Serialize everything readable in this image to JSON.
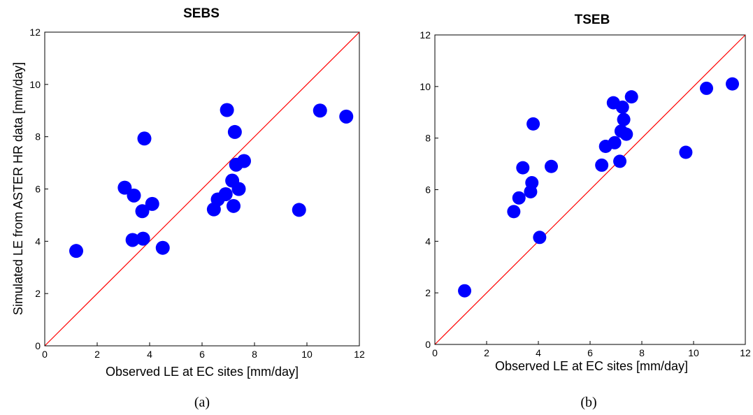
{
  "chart_data": [
    {
      "type": "scatter",
      "title": "SEBS",
      "xlabel": "Observed LE at EC sites [mm/day]",
      "ylabel": "Simulated LE from ASTER HR data [mm/day]",
      "xlim": [
        0,
        12
      ],
      "ylim": [
        0,
        12
      ],
      "xticks": [
        "0",
        "2",
        "4",
        "6",
        "8",
        "10",
        "12"
      ],
      "yticks": [
        "0",
        "2",
        "4",
        "6",
        "8",
        "10",
        "12"
      ],
      "grid": false,
      "point_color": "#0000ff",
      "line_color": "#ff0000",
      "reference_line": "1:1",
      "caption": "(a)",
      "points": [
        {
          "x": 1.2,
          "y": 3.63
        },
        {
          "x": 3.05,
          "y": 6.05
        },
        {
          "x": 3.35,
          "y": 4.05
        },
        {
          "x": 3.4,
          "y": 5.75
        },
        {
          "x": 3.72,
          "y": 5.15
        },
        {
          "x": 3.75,
          "y": 4.1
        },
        {
          "x": 3.8,
          "y": 7.93
        },
        {
          "x": 4.1,
          "y": 5.43
        },
        {
          "x": 4.5,
          "y": 3.75
        },
        {
          "x": 6.45,
          "y": 5.22
        },
        {
          "x": 6.6,
          "y": 5.6
        },
        {
          "x": 6.9,
          "y": 5.8
        },
        {
          "x": 6.95,
          "y": 9.02
        },
        {
          "x": 7.15,
          "y": 6.32
        },
        {
          "x": 7.2,
          "y": 5.35
        },
        {
          "x": 7.25,
          "y": 8.18
        },
        {
          "x": 7.3,
          "y": 6.93
        },
        {
          "x": 7.4,
          "y": 6.0
        },
        {
          "x": 7.6,
          "y": 7.07
        },
        {
          "x": 9.7,
          "y": 5.2
        },
        {
          "x": 10.5,
          "y": 9.0
        },
        {
          "x": 11.5,
          "y": 8.77
        }
      ]
    },
    {
      "type": "scatter",
      "title": "TSEB",
      "xlabel": "Observed LE at EC sites [mm/day]",
      "ylabel": "",
      "xlim": [
        0,
        12
      ],
      "ylim": [
        0,
        12
      ],
      "xticks": [
        "0",
        "2",
        "4",
        "6",
        "8",
        "10",
        "12"
      ],
      "yticks": [
        "0",
        "2",
        "4",
        "6",
        "8",
        "10",
        "12"
      ],
      "grid": false,
      "point_color": "#0000ff",
      "line_color": "#ff0000",
      "reference_line": "1:1",
      "caption": "(b)",
      "points": [
        {
          "x": 1.15,
          "y": 2.08
        },
        {
          "x": 3.05,
          "y": 5.15
        },
        {
          "x": 3.25,
          "y": 5.68
        },
        {
          "x": 3.4,
          "y": 6.85
        },
        {
          "x": 3.7,
          "y": 5.92
        },
        {
          "x": 3.75,
          "y": 6.27
        },
        {
          "x": 3.8,
          "y": 8.55
        },
        {
          "x": 4.05,
          "y": 4.15
        },
        {
          "x": 4.5,
          "y": 6.9
        },
        {
          "x": 6.45,
          "y": 6.95
        },
        {
          "x": 6.6,
          "y": 7.68
        },
        {
          "x": 6.9,
          "y": 9.37
        },
        {
          "x": 6.95,
          "y": 7.82
        },
        {
          "x": 7.15,
          "y": 7.1
        },
        {
          "x": 7.2,
          "y": 8.27
        },
        {
          "x": 7.25,
          "y": 9.2
        },
        {
          "x": 7.3,
          "y": 8.72
        },
        {
          "x": 7.4,
          "y": 8.15
        },
        {
          "x": 7.6,
          "y": 9.6
        },
        {
          "x": 9.7,
          "y": 7.45
        },
        {
          "x": 10.5,
          "y": 9.93
        },
        {
          "x": 11.5,
          "y": 10.1
        }
      ]
    }
  ]
}
